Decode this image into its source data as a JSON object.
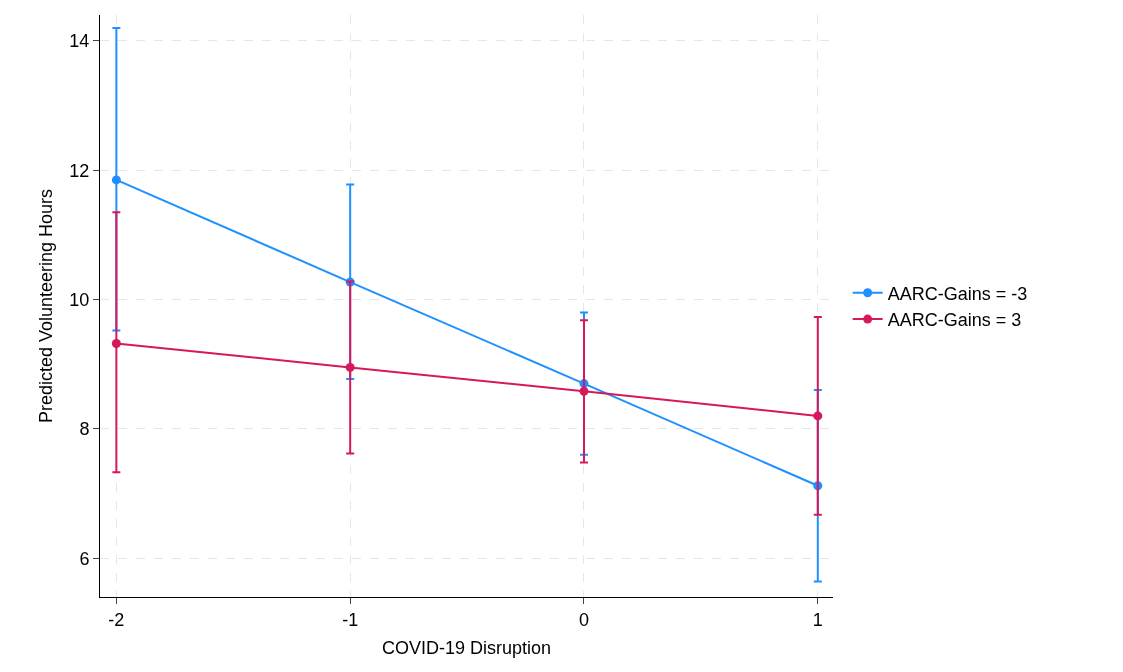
{
  "chart_data": {
    "type": "line",
    "xlabel": "COVID-19 Disruption",
    "ylabel": "Predicted Volunteering Hours",
    "x": [
      -2,
      -1,
      0,
      1
    ],
    "series": [
      {
        "name": "AARC-Gains = -3",
        "color": "#1e90ff",
        "values": [
          11.85,
          10.27,
          8.7,
          7.12
        ],
        "errors": [
          [
            9.52,
            14.2
          ],
          [
            8.77,
            11.78
          ],
          [
            7.6,
            9.8
          ],
          [
            5.64,
            8.6
          ]
        ]
      },
      {
        "name": "AARC-Gains = 3",
        "color": "#d6195a",
        "values": [
          9.32,
          8.95,
          8.58,
          8.2
        ],
        "errors": [
          [
            7.33,
            11.35
          ],
          [
            7.62,
            10.28
          ],
          [
            7.48,
            9.68
          ],
          [
            6.67,
            9.73
          ]
        ]
      }
    ],
    "xlim": [
      -2.07,
      1.065
    ],
    "xticks": [
      -2,
      -1,
      0,
      1
    ],
    "ylim": [
      5.4,
      14.4
    ],
    "yticks": [
      6,
      8,
      10,
      12,
      14
    ],
    "grid": true,
    "legend": "right",
    "marker": "circle",
    "line_style": "solid"
  }
}
